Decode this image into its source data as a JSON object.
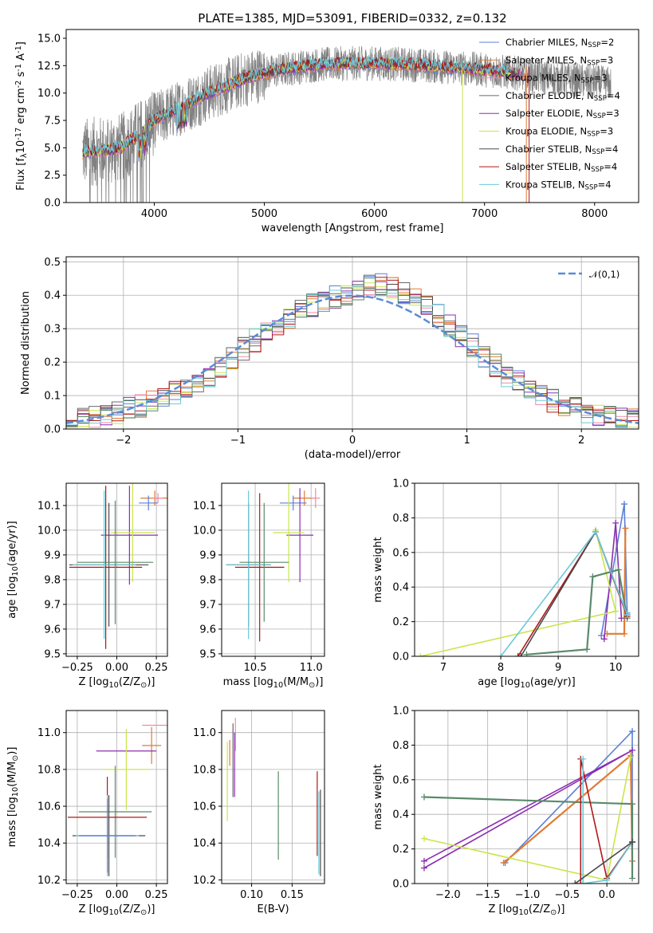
{
  "colors": {
    "c1": "#5b7fd8",
    "c2": "#e07b35",
    "c3": "#f08aab",
    "c4": "#6a6a6a",
    "c5": "#8b2fb0",
    "c6": "#c9e64a",
    "c7": "#4a4a4a",
    "c8": "#b01818",
    "c9": "#6ccad8",
    "c10": "#5a8a6a",
    "gray": "#808080"
  },
  "chart_data": [
    {
      "id": "spectrum",
      "type": "line",
      "title": "PLATE=1385, MJD=53091, FIBERID=0332, z=0.132",
      "xlabel": "wavelength [Angstrom, rest frame]",
      "ylabel": "Flux [f$_\\lambda$10$^{-17}$ erg cm$^{-2}$ s$^{-1}$ A$^{-1}$]",
      "xlim": [
        3200,
        8400
      ],
      "ylim": [
        0,
        15.8
      ],
      "xticks": [
        "4000",
        "5000",
        "6000",
        "7000",
        "8000"
      ],
      "yticks": [
        "0.0",
        "2.5",
        "5.0",
        "7.5",
        "10.0",
        "12.5",
        "15.0"
      ],
      "legend_position": "top-right",
      "legend": [
        {
          "label": "Chabrier MILES, N$_{SSP}$=2",
          "color_key": "c1"
        },
        {
          "label": "Salpeter MILES, N$_{SSP}$=3",
          "color_key": "c2"
        },
        {
          "label": "Kroupa MILES, N$_{SSP}$=3",
          "color_key": "c3"
        },
        {
          "label": "Chabrier ELODIE, N$_{SSP}$=4",
          "color_key": "c4"
        },
        {
          "label": "Salpeter ELODIE, N$_{SSP}$=3",
          "color_key": "c5"
        },
        {
          "label": "Kroupa ELODIE, N$_{SSP}$=3",
          "color_key": "c6"
        },
        {
          "label": "Chabrier STELIB, N$_{SSP}$=4",
          "color_key": "c7"
        },
        {
          "label": "Salpeter STELIB, N$_{SSP}$=4",
          "color_key": "c8"
        },
        {
          "label": "Kroupa STELIB, N$_{SSP}$=4",
          "color_key": "c9"
        }
      ],
      "continuum": {
        "x": [
          3350,
          3500,
          3700,
          3900,
          4000,
          4200,
          4500,
          4800,
          5000,
          5200,
          5500,
          5800,
          6000,
          6300,
          6600,
          6900,
          7100,
          7300,
          7400
        ],
        "y": [
          4.6,
          4.7,
          5.0,
          6.5,
          7.5,
          8.5,
          10.0,
          11.2,
          11.8,
          12.2,
          12.6,
          12.7,
          12.7,
          12.6,
          12.4,
          12.2,
          12.0,
          11.8,
          11.6
        ]
      },
      "data_x_range": [
        3350,
        8150
      ]
    },
    {
      "id": "residuals",
      "type": "line",
      "xlabel": "(data-model)/error",
      "ylabel": "Normed distribution",
      "xlim": [
        -2.5,
        2.5
      ],
      "ylim": [
        0,
        0.515
      ],
      "xticks": [
        "−2",
        "−1",
        "0",
        "1",
        "2"
      ],
      "yticks": [
        "0.0",
        "0.1",
        "0.2",
        "0.3",
        "0.4",
        "0.5"
      ],
      "gaussian_label": "$\\mathcal{N}(0,1)$",
      "legend_position": "top-right",
      "bin_width": 0.1,
      "hist_base": [
        0.025,
        0.03,
        0.035,
        0.04,
        0.05,
        0.06,
        0.07,
        0.08,
        0.095,
        0.11,
        0.125,
        0.14,
        0.16,
        0.185,
        0.21,
        0.24,
        0.265,
        0.29,
        0.31,
        0.335,
        0.355,
        0.37,
        0.385,
        0.395,
        0.4,
        0.41,
        0.425,
        0.43,
        0.425,
        0.41,
        0.39,
        0.37,
        0.34,
        0.31,
        0.28,
        0.25,
        0.22,
        0.19,
        0.16,
        0.14,
        0.12,
        0.1,
        0.085,
        0.07,
        0.06,
        0.05,
        0.042,
        0.035,
        0.03,
        0.025
      ]
    },
    {
      "id": "age-Z",
      "type": "scatter",
      "xlabel": "Z [log$_{10}$(Z/Z$_\\odot$)]",
      "ylabel": "age  [log$_{10}$(age/yr)]",
      "xlim": [
        -0.32,
        0.32
      ],
      "ylim": [
        9.49,
        10.19
      ],
      "xticks": [
        -0.25,
        0.0,
        0.25
      ],
      "xtick_labels": [
        "−0.25",
        "0.00",
        "0.25"
      ],
      "yticks": [
        9.5,
        9.6,
        9.7,
        9.8,
        9.9,
        10.0,
        10.1
      ],
      "ytick_labels": [
        "9.5",
        "9.6",
        "9.7",
        "9.8",
        "9.9",
        "10.0",
        "10.1"
      ],
      "errorbars": [
        {
          "c": "c2",
          "x": 0.24,
          "xe": 0.09,
          "y": 10.13,
          "ye": 0.03
        },
        {
          "c": "c1",
          "x": 0.2,
          "xe": 0.06,
          "y": 10.11,
          "ye": 0.03
        },
        {
          "c": "c3",
          "x": 0.26,
          "xe": 0.03,
          "y": 10.13,
          "ye": 0.02
        },
        {
          "c": "c5",
          "x": 0.08,
          "xe": 0.18,
          "y": 9.98,
          "ye": 0.2
        },
        {
          "c": "c6",
          "x": 0.1,
          "xe": 0.14,
          "y": 9.99,
          "ye": 0.2
        },
        {
          "c": "c7",
          "x": -0.05,
          "xe": 0.25,
          "y": 9.86,
          "ye": 0.25
        },
        {
          "c": "c8",
          "x": -0.07,
          "xe": 0.23,
          "y": 9.85,
          "ye": 0.33
        },
        {
          "c": "c9",
          "x": -0.08,
          "xe": 0.2,
          "y": 9.86,
          "ye": 0.3
        },
        {
          "c": "c10",
          "x": -0.01,
          "xe": 0.24,
          "y": 9.87,
          "ye": 0.25
        }
      ]
    },
    {
      "id": "age-mass",
      "type": "scatter",
      "xlabel": "mass [log$_{10}$(M/M$_\\odot$)]",
      "ylabel": "",
      "xlim": [
        10.2,
        11.12
      ],
      "ylim": [
        9.49,
        10.19
      ],
      "xticks": [
        10.5,
        11.0
      ],
      "xtick_labels": [
        "10.5",
        "11.0"
      ],
      "yticks": [
        9.5,
        9.6,
        9.7,
        9.8,
        9.9,
        10.0,
        10.1
      ],
      "ytick_labels": [
        "9.5",
        "9.6",
        "9.7",
        "9.8",
        "9.9",
        "10.0",
        "10.1"
      ],
      "errorbars": [
        {
          "c": "c2",
          "x": 10.94,
          "xe": 0.1,
          "y": 10.13,
          "ye": 0.03
        },
        {
          "c": "c1",
          "x": 10.84,
          "xe": 0.12,
          "y": 10.11,
          "ye": 0.03
        },
        {
          "c": "c3",
          "x": 11.04,
          "xe": 0.04,
          "y": 10.13,
          "ye": 0.04
        },
        {
          "c": "c5",
          "x": 10.9,
          "xe": 0.12,
          "y": 9.98,
          "ye": 0.19
        },
        {
          "c": "c6",
          "x": 10.8,
          "xe": 0.14,
          "y": 9.99,
          "ye": 0.2
        },
        {
          "c": "c7",
          "x": 10.44,
          "xe": 0.2,
          "y": 9.86,
          "ye": 0.25
        },
        {
          "c": "c8",
          "x": 10.54,
          "xe": 0.22,
          "y": 9.85,
          "ye": 0.3
        },
        {
          "c": "c9",
          "x": 10.44,
          "xe": 0.2,
          "y": 9.86,
          "ye": 0.3
        },
        {
          "c": "c10",
          "x": 10.58,
          "xe": 0.22,
          "y": 9.87,
          "ye": 0.24
        }
      ]
    },
    {
      "id": "weight-age",
      "type": "line",
      "xlabel": "age  [log$_{10}$(age/yr)]",
      "ylabel": "mass weight",
      "xlim": [
        6.5,
        10.4
      ],
      "ylim": [
        0,
        1.0
      ],
      "xticks": [
        7,
        8,
        9,
        10
      ],
      "xtick_labels": [
        "7",
        "8",
        "9",
        "10"
      ],
      "yticks": [
        0,
        0.2,
        0.4,
        0.6,
        0.8,
        1.0
      ],
      "ytick_labels": [
        "0.0",
        "0.2",
        "0.4",
        "0.6",
        "0.8",
        "1.0"
      ],
      "series": [
        {
          "c": "c1",
          "x": [
            9.75,
            10.15,
            10.2
          ],
          "y": [
            0.12,
            0.88,
            0.25
          ]
        },
        {
          "c": "c2",
          "x": [
            9.85,
            10.15,
            10.17
          ],
          "y": [
            0.13,
            0.13,
            0.74
          ]
        },
        {
          "c": "c5",
          "x": [
            9.8,
            10.0,
            10.1
          ],
          "y": [
            0.1,
            0.77,
            0.22
          ]
        },
        {
          "c": "c6",
          "x": [
            6.6,
            10.0,
            9.65
          ],
          "y": [
            0.0,
            0.26,
            0.73
          ]
        },
        {
          "c": "c10",
          "x": [
            8.45,
            9.5,
            9.6,
            10.05,
            10.2
          ],
          "y": [
            0.01,
            0.04,
            0.46,
            0.5,
            0.22
          ]
        },
        {
          "c": "c8",
          "x": [
            8.3,
            9.65,
            10.2
          ],
          "y": [
            0.0,
            0.72,
            0.23
          ]
        },
        {
          "c": "c7",
          "x": [
            8.35,
            9.65,
            10.2
          ],
          "y": [
            0.0,
            0.72,
            0.24
          ]
        },
        {
          "c": "c9",
          "x": [
            8.0,
            9.65,
            10.2
          ],
          "y": [
            0.0,
            0.72,
            0.24
          ]
        }
      ]
    },
    {
      "id": "mass-Z",
      "type": "scatter",
      "xlabel": "Z [log$_{10}$(Z/Z$_\\odot$)]",
      "ylabel": "mass [log$_{10}$(M/M$_\\odot$)]",
      "xlim": [
        -0.32,
        0.32
      ],
      "ylim": [
        10.18,
        11.12
      ],
      "xticks": [
        -0.25,
        0.0,
        0.25
      ],
      "xtick_labels": [
        "−0.25",
        "0.00",
        "0.25"
      ],
      "yticks": [
        10.2,
        10.4,
        10.6,
        10.8,
        11.0
      ],
      "ytick_labels": [
        "10.2",
        "10.4",
        "10.6",
        "10.8",
        "11.0"
      ],
      "errorbars": [
        {
          "c": "c3",
          "x": 0.24,
          "xe": 0.08,
          "y": 11.04,
          "ye": 0.0
        },
        {
          "c": "c2",
          "x": 0.22,
          "xe": 0.06,
          "y": 10.93,
          "ye": 0.1
        },
        {
          "c": "c5",
          "x": 0.06,
          "xe": 0.19,
          "y": 10.9,
          "ye": 0.0
        },
        {
          "c": "c6",
          "x": 0.06,
          "xe": 0.14,
          "y": 10.8,
          "ye": 0.22
        },
        {
          "c": "c10",
          "x": -0.01,
          "xe": 0.23,
          "y": 10.57,
          "ye": 0.25
        },
        {
          "c": "c8",
          "x": -0.06,
          "xe": 0.25,
          "y": 10.54,
          "ye": 0.22
        },
        {
          "c": "c7",
          "x": -0.05,
          "xe": 0.23,
          "y": 10.44,
          "ye": 0.22
        },
        {
          "c": "c9",
          "x": -0.06,
          "xe": 0.2,
          "y": 10.44,
          "ye": 0.22
        },
        {
          "c": "c1",
          "x": -0.06,
          "xe": 0.18,
          "y": 10.44,
          "ye": 0.2
        }
      ]
    },
    {
      "id": "mass-EBV",
      "type": "scatter",
      "xlabel": "E(B-V)",
      "ylabel": "",
      "xlim": [
        0.063,
        0.19
      ],
      "ylim": [
        10.18,
        11.12
      ],
      "xticks": [
        0.1,
        0.15
      ],
      "xtick_labels": [
        "0.10",
        "0.15"
      ],
      "yticks": [
        10.2,
        10.4,
        10.6,
        10.8,
        11.0
      ],
      "ytick_labels": [
        "10.2",
        "10.4",
        "10.6",
        "10.8",
        "11.0"
      ],
      "vbars": [
        {
          "c": "c6",
          "x": 0.07,
          "y0": 10.52,
          "y1": 10.95
        },
        {
          "c": "c2",
          "x": 0.073,
          "y0": 10.82,
          "y1": 10.96
        },
        {
          "c": "c4",
          "x": 0.077,
          "y0": 10.65,
          "y1": 11.05
        },
        {
          "c": "c3",
          "x": 0.08,
          "y0": 10.9,
          "y1": 11.08
        },
        {
          "c": "c5",
          "x": 0.079,
          "y0": 10.65,
          "y1": 11.0
        },
        {
          "c": "c10",
          "x": 0.133,
          "y0": 10.31,
          "y1": 10.79
        },
        {
          "c": "c8",
          "x": 0.181,
          "y0": 10.33,
          "y1": 10.79
        },
        {
          "c": "c9",
          "x": 0.183,
          "y0": 10.23,
          "y1": 10.68
        },
        {
          "c": "c7",
          "x": 0.185,
          "y0": 10.22,
          "y1": 10.69
        }
      ]
    },
    {
      "id": "weight-Z",
      "type": "line",
      "xlabel": "Z [log$_{10}$(Z/Z$_\\odot$)]",
      "ylabel": "mass weight",
      "xlim": [
        -2.42,
        0.4
      ],
      "ylim": [
        0,
        1.0
      ],
      "xticks": [
        -2.0,
        -1.5,
        -1.0,
        -0.5,
        0.0
      ],
      "xtick_labels": [
        "−2.0",
        "−1.5",
        "−1.0",
        "−0.5",
        "0.0"
      ],
      "yticks": [
        0,
        0.2,
        0.4,
        0.6,
        0.8,
        1.0
      ],
      "ytick_labels": [
        "0.0",
        "0.2",
        "0.4",
        "0.6",
        "0.8",
        "1.0"
      ],
      "series": [
        {
          "c": "c1",
          "x": [
            -1.28,
            0.32,
            0.32
          ],
          "y": [
            0.12,
            0.88,
            0.24
          ]
        },
        {
          "c": "c2",
          "x": [
            -1.3,
            0.3,
            0.32
          ],
          "y": [
            0.12,
            0.74,
            0.13
          ]
        },
        {
          "c": "c5",
          "x": [
            -2.3,
            0.32,
            -2.3
          ],
          "y": [
            0.13,
            0.77,
            0.09
          ]
        },
        {
          "c": "c6",
          "x": [
            -2.3,
            0.0,
            0.3
          ],
          "y": [
            0.26,
            0.02,
            0.73
          ]
        },
        {
          "c": "c10",
          "x": [
            -2.3,
            0.32,
            0.32
          ],
          "y": [
            0.5,
            0.46,
            0.03
          ]
        },
        {
          "c": "c8",
          "x": [
            -0.33,
            -0.33,
            0.0,
            0.32
          ],
          "y": [
            0.0,
            0.72,
            0.03,
            0.24
          ]
        },
        {
          "c": "c9",
          "x": [
            -0.3,
            -0.3,
            0.0,
            0.32
          ],
          "y": [
            0.72,
            0.0,
            0.02,
            0.24
          ]
        },
        {
          "c": "c7",
          "x": [
            -0.4,
            0.32
          ],
          "y": [
            0.0,
            0.24
          ]
        }
      ]
    }
  ]
}
